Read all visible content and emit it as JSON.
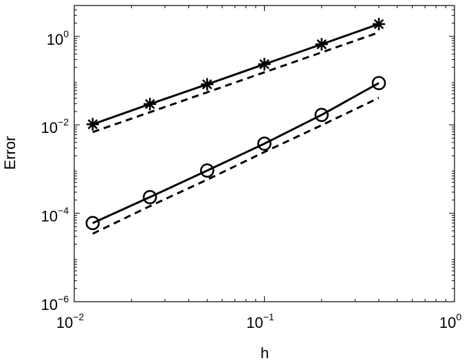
{
  "chart_data": {
    "type": "line",
    "title": "",
    "xlabel": "h",
    "ylabel": "Error",
    "xscale": "log",
    "yscale": "log",
    "xlim": [
      0.01,
      1
    ],
    "ylim": [
      1e-06,
      5
    ],
    "grid": false,
    "legend": "none",
    "x_ticks": [
      {
        "value": 0.01,
        "base": "10",
        "exp": "−2"
      },
      {
        "value": 0.1,
        "base": "10",
        "exp": "−1"
      },
      {
        "value": 1,
        "base": "10",
        "exp": "0"
      }
    ],
    "y_ticks": [
      {
        "value": 1e-06,
        "base": "10",
        "exp": "−6"
      },
      {
        "value": 0.0001,
        "base": "10",
        "exp": "−4"
      },
      {
        "value": 0.01,
        "base": "10",
        "exp": "−2"
      },
      {
        "value": 1,
        "base": "10",
        "exp": "0"
      }
    ],
    "x": [
      0.0125,
      0.025,
      0.05,
      0.1,
      0.2,
      0.4
    ],
    "series": [
      {
        "marker": "star",
        "line_style": "solid",
        "values": [
          0.0103,
          0.0295,
          0.0825,
          0.235,
          0.665,
          1.9
        ]
      },
      {
        "marker": "none",
        "line_style": "dashed",
        "values": [
          0.00685,
          0.0193,
          0.0545,
          0.154,
          0.435,
          1.23
        ]
      },
      {
        "marker": "circle",
        "line_style": "solid",
        "values": [
          6e-05,
          0.000232,
          0.000925,
          0.00375,
          0.0168,
          0.088
        ]
      },
      {
        "marker": "none",
        "line_style": "dashed",
        "values": [
          3.45e-05,
          0.000145,
          0.000575,
          0.00243,
          0.0098,
          0.0407
        ]
      }
    ],
    "colors": {
      "line": "#000000",
      "background": "#ffffff"
    }
  }
}
